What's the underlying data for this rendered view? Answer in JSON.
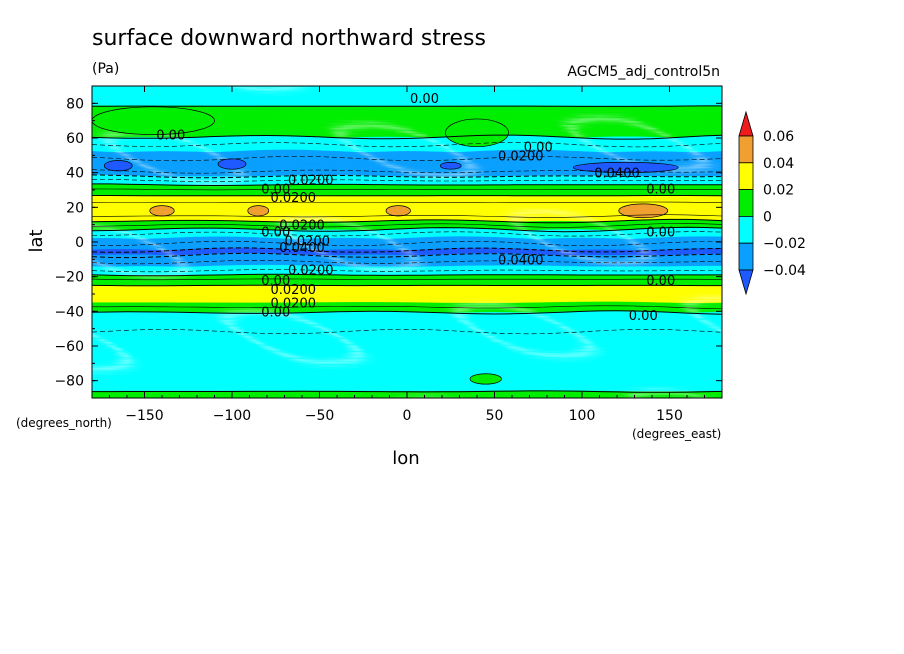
{
  "chart_data": {
    "type": "heatmap",
    "title": "surface downward northward stress",
    "units": "(Pa)",
    "dataset": "AGCM5_adj_control5n",
    "xlabel": "lon",
    "ylabel": "lat",
    "x_units": "(degrees_east)",
    "y_units": "(degrees_north)",
    "xlim": [
      -180,
      180
    ],
    "ylim": [
      -90,
      90
    ],
    "x_ticks": [
      -150,
      -100,
      -50,
      0,
      50,
      100,
      150
    ],
    "x_tick_labels": [
      "−150",
      "−100",
      "−50",
      "0",
      "50",
      "100",
      "150"
    ],
    "y_ticks": [
      80,
      60,
      40,
      20,
      0,
      -20,
      -40,
      -60,
      -80
    ],
    "y_tick_labels": [
      "80",
      "60",
      "40",
      "20",
      "0",
      "−20",
      "−40",
      "−60",
      "−80"
    ],
    "levels": [
      {
        "label": "0.06",
        "color": "#ee1c1c"
      },
      {
        "label": "0.04",
        "color": "#f0a030"
      },
      {
        "label": "0.02",
        "color": "#ffff00"
      },
      {
        "label": "0",
        "color": "#00ee00"
      },
      {
        "label": "−0.02",
        "color": "#00ffff"
      },
      {
        "label": "−0.04",
        "color": "#0aa0ff"
      },
      {
        "label": "",
        "color": "#1e5aff"
      }
    ],
    "lat_profile": [
      {
        "lat": 90,
        "v": -0.005
      },
      {
        "lat": 80,
        "v": -0.002
      },
      {
        "lat": 75,
        "v": 0.004
      },
      {
        "lat": 68,
        "v": 0.005
      },
      {
        "lat": 61,
        "v": 0.001
      },
      {
        "lat": 57,
        "v": -0.008
      },
      {
        "lat": 52,
        "v": -0.02
      },
      {
        "lat": 47,
        "v": -0.033
      },
      {
        "lat": 43,
        "v": -0.037
      },
      {
        "lat": 39,
        "v": -0.025
      },
      {
        "lat": 35,
        "v": -0.008
      },
      {
        "lat": 31,
        "v": 0.008
      },
      {
        "lat": 26,
        "v": 0.022
      },
      {
        "lat": 22,
        "v": 0.032
      },
      {
        "lat": 18,
        "v": 0.037
      },
      {
        "lat": 14,
        "v": 0.028
      },
      {
        "lat": 10,
        "v": 0.012
      },
      {
        "lat": 6,
        "v": -0.005
      },
      {
        "lat": 2,
        "v": -0.02
      },
      {
        "lat": -2,
        "v": -0.034
      },
      {
        "lat": -6,
        "v": -0.043
      },
      {
        "lat": -10,
        "v": -0.036
      },
      {
        "lat": -14,
        "v": -0.02
      },
      {
        "lat": -18,
        "v": -0.004
      },
      {
        "lat": -22,
        "v": 0.012
      },
      {
        "lat": -27,
        "v": 0.025
      },
      {
        "lat": -31,
        "v": 0.03
      },
      {
        "lat": -35,
        "v": 0.02
      },
      {
        "lat": -38,
        "v": 0.008
      },
      {
        "lat": -41,
        "v": -0.001
      },
      {
        "lat": -45,
        "v": -0.008
      },
      {
        "lat": -55,
        "v": -0.011
      },
      {
        "lat": -65,
        "v": -0.01
      },
      {
        "lat": -78,
        "v": -0.008
      },
      {
        "lat": -84,
        "v": -0.003
      },
      {
        "lat": -87,
        "v": 0.001
      },
      {
        "lat": -90,
        "v": 0.003
      }
    ],
    "contour_labels": [
      {
        "text": "0.00",
        "lon": 10,
        "lat": 83
      },
      {
        "text": "0.00",
        "lon": -135,
        "lat": 62
      },
      {
        "text": "0.00",
        "lon": 75,
        "lat": 55
      },
      {
        "text": "0.0200",
        "lon": 65,
        "lat": 50
      },
      {
        "text": "0.0400",
        "lon": 120,
        "lat": 40
      },
      {
        "text": "0.0200",
        "lon": -55,
        "lat": 36
      },
      {
        "text": "0.00",
        "lon": -75,
        "lat": 31
      },
      {
        "text": "0.00",
        "lon": 145,
        "lat": 31
      },
      {
        "text": "0.0200",
        "lon": -65,
        "lat": 26
      },
      {
        "text": "0.0200",
        "lon": -60,
        "lat": 10
      },
      {
        "text": "0.00",
        "lon": -75,
        "lat": 6
      },
      {
        "text": "0.00",
        "lon": 145,
        "lat": 6
      },
      {
        "text": "0.0200",
        "lon": -57,
        "lat": 1
      },
      {
        "text": "0.0400",
        "lon": -60,
        "lat": -3
      },
      {
        "text": "0.0400",
        "lon": 65,
        "lat": -10
      },
      {
        "text": "0.0200",
        "lon": -55,
        "lat": -16
      },
      {
        "text": "0.00",
        "lon": -75,
        "lat": -22
      },
      {
        "text": "0.00",
        "lon": 145,
        "lat": -22
      },
      {
        "text": "0.0200",
        "lon": -65,
        "lat": -27
      },
      {
        "text": "0.0200",
        "lon": -65,
        "lat": -35
      },
      {
        "text": "0.00",
        "lon": -75,
        "lat": -40
      },
      {
        "text": "0.00",
        "lon": 135,
        "lat": -42
      }
    ]
  }
}
